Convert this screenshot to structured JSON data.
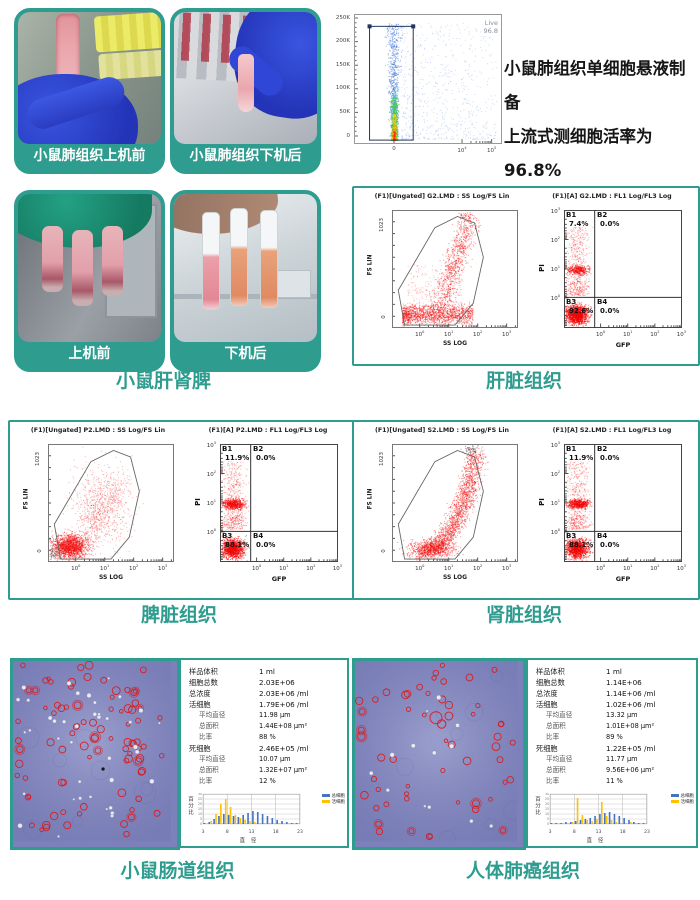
{
  "page": {
    "accent": "#2E9C8F",
    "background": "#ffffff"
  },
  "photos_row1": [
    {
      "label": "小鼠肺组织上机前"
    },
    {
      "label": "小鼠肺组织下机后"
    }
  ],
  "live_plot": {
    "gate_name": "Live",
    "gate_value": "96.8",
    "y_ticks": [
      "250K",
      "200K",
      "150K",
      "100K",
      "50K",
      "0"
    ],
    "x_ticks": [
      {
        "b": "0",
        "e": ""
      },
      {
        "b": "10",
        "e": "4"
      },
      {
        "b": "10",
        "e": "5"
      }
    ]
  },
  "summary": {
    "line1": "小鼠肺组织单细胞悬液制备",
    "line2": "上流式测细胞活率为96.8%"
  },
  "photos_row2": [
    {
      "label": "上机前"
    },
    {
      "label": "下机后"
    }
  ],
  "row2_caption": "小鼠肝肾脾",
  "flow_common": {
    "left_y_label": "FS LIN",
    "left_y_top": "1023",
    "left_y_bottom": "0",
    "left_x_label": "SS LOG",
    "right_y_label": "PI",
    "right_x_label": "GFP",
    "log_ticks": [
      {
        "b": "10",
        "e": "0"
      },
      {
        "b": "10",
        "e": "1"
      },
      {
        "b": "10",
        "e": "2"
      },
      {
        "b": "10",
        "e": "3"
      }
    ],
    "right_y_ticks": [
      {
        "b": "10",
        "e": "3"
      },
      {
        "b": "10",
        "e": "2"
      },
      {
        "b": "10",
        "e": "1"
      },
      {
        "b": "10",
        "e": "0"
      }
    ]
  },
  "flow_panels": [
    {
      "caption": "肝脏组织",
      "left_title": "(F1)[Ungated] G2.LMD : SS Log/FS Lin",
      "right_title": "(F1)[A] G2.LMD : FL1 Log/FL3 Log",
      "b1": "B1",
      "b1_pct": "7.4%",
      "b2": "B2",
      "b2_pct": "0.0%",
      "b3": "B3",
      "b3_pct": "92.6%",
      "b4": "B4",
      "b4_pct": "0.0%"
    },
    {
      "caption": "脾脏组织",
      "left_title": "(F1)[Ungated] P2.LMD : SS Log/FS Lin",
      "right_title": "(F1)[A] P2.LMD : FL1 Log/FL3 Log",
      "b1": "B1",
      "b1_pct": "11.9%",
      "b2": "B2",
      "b2_pct": "0.0%",
      "b3": "B3",
      "b3_pct": "88.1%",
      "b4": "B4",
      "b4_pct": "0.0%"
    },
    {
      "caption": "肾脏组织",
      "left_title": "(F1)[Ungated] S2.LMD : SS Log/FS Lin",
      "right_title": "(F1)[A] S2.LMD : FL1 Log/FL3 Log",
      "b1": "B1",
      "b1_pct": "11.9%",
      "b2": "B2",
      "b2_pct": "0.0%",
      "b3": "B3",
      "b3_pct": "88.1%",
      "b4": "B4",
      "b4_pct": "0.0%"
    }
  ],
  "count_panels": [
    {
      "caption": "小鼠肠道组织",
      "hist": {
        "y_label": "百分比",
        "x_label": "直 径"
      },
      "rows": [
        {
          "label": "样品体积",
          "value": "1 ml"
        },
        {
          "label": "细胞总数",
          "value": "2.03E+06"
        },
        {
          "label": "总浓度",
          "value": "2.03E+06 /ml"
        },
        {
          "label": "活细胞",
          "value": "1.79E+06 /ml"
        },
        {
          "label": "平均直径",
          "value": "11.98 μm",
          "sub": true
        },
        {
          "label": "总面积",
          "value": "1.44E+08 μm²",
          "sub": true
        },
        {
          "label": "比率",
          "value": "88 %",
          "sub": true
        },
        {
          "label": "死细胞",
          "value": "2.46E+05 /ml"
        },
        {
          "label": "平均直径",
          "value": "10.07 μm",
          "sub": true
        },
        {
          "label": "总面积",
          "value": "1.32E+07 μm²",
          "sub": true
        },
        {
          "label": "比率",
          "value": "12 %",
          "sub": true
        }
      ]
    },
    {
      "caption": "人体肺癌组织",
      "hist": {
        "y_label": "百分比",
        "x_label": "直 径"
      },
      "rows": [
        {
          "label": "样品体积",
          "value": "1 ml"
        },
        {
          "label": "细胞总数",
          "value": "1.14E+06"
        },
        {
          "label": "总浓度",
          "value": "1.14E+06 /ml"
        },
        {
          "label": "活细胞",
          "value": "1.02E+06 /ml"
        },
        {
          "label": "平均直径",
          "value": "13.32 μm",
          "sub": true
        },
        {
          "label": "总面积",
          "value": "1.01E+08 μm²",
          "sub": true
        },
        {
          "label": "比率",
          "value": "89 %",
          "sub": true
        },
        {
          "label": "死细胞",
          "value": "1.22E+05 /ml"
        },
        {
          "label": "平均直径",
          "value": "11.77 μm",
          "sub": true
        },
        {
          "label": "总面积",
          "value": "9.56E+06 μm²",
          "sub": true
        },
        {
          "label": "比率",
          "value": "11 %",
          "sub": true
        }
      ]
    }
  ],
  "chart_data": [
    {
      "type": "scatter",
      "id": "lung_viability",
      "gate": {
        "name": "Live",
        "percent": 96.8
      },
      "x_ticks": [
        "0",
        "10^4",
        "10^5"
      ],
      "y_ticks": [
        "0",
        "50K",
        "100K",
        "150K",
        "200K",
        "250K"
      ],
      "note": "density scatter, dense column at x≈0 inside rectangular Live gate"
    },
    {
      "type": "scatter",
      "id": "liver",
      "left_plot": {
        "title": "(F1)[Ungated] G2.LMD : SS Log/FS Lin",
        "xlabel": "SS LOG",
        "ylabel": "FS LIN",
        "y_range": [
          0,
          1023
        ],
        "x_ticks": [
          "10^0",
          "10^1",
          "10^2",
          "10^3"
        ],
        "gate": "polygon"
      },
      "right_plot": {
        "title": "(F1)[A] G2.LMD : FL1 Log/FL3 Log",
        "xlabel": "GFP",
        "ylabel": "PI",
        "x_ticks": [
          "10^0",
          "10^1",
          "10^2",
          "10^3"
        ],
        "y_ticks": [
          "10^0",
          "10^1",
          "10^2",
          "10^3"
        ],
        "quadrants": {
          "B1": 7.4,
          "B2": 0.0,
          "B3": 92.6,
          "B4": 0.0
        }
      }
    },
    {
      "type": "scatter",
      "id": "spleen",
      "left_plot": {
        "title": "(F1)[Ungated] P2.LMD : SS Log/FS Lin",
        "xlabel": "SS LOG",
        "ylabel": "FS LIN",
        "y_range": [
          0,
          1023
        ],
        "x_ticks": [
          "10^0",
          "10^1",
          "10^2",
          "10^3"
        ],
        "gate": "polygon"
      },
      "right_plot": {
        "title": "(F1)[A] P2.LMD : FL1 Log/FL3 Log",
        "xlabel": "GFP",
        "ylabel": "PI",
        "x_ticks": [
          "10^0",
          "10^1",
          "10^2",
          "10^3"
        ],
        "y_ticks": [
          "10^0",
          "10^1",
          "10^2",
          "10^3"
        ],
        "quadrants": {
          "B1": 11.9,
          "B2": 0.0,
          "B3": 88.1,
          "B4": 0.0
        }
      }
    },
    {
      "type": "scatter",
      "id": "kidney",
      "left_plot": {
        "title": "(F1)[Ungated] S2.LMD : SS Log/FS Lin",
        "xlabel": "SS LOG",
        "ylabel": "FS LIN",
        "y_range": [
          0,
          1023
        ],
        "x_ticks": [
          "10^0",
          "10^1",
          "10^2",
          "10^3"
        ],
        "gate": "polygon"
      },
      "right_plot": {
        "title": "(F1)[A] S2.LMD : FL1 Log/FL3 Log",
        "xlabel": "GFP",
        "ylabel": "PI",
        "x_ticks": [
          "10^0",
          "10^1",
          "10^2",
          "10^3"
        ],
        "y_ticks": [
          "10^0",
          "10^1",
          "10^2",
          "10^3"
        ],
        "quadrants": {
          "B1": 11.9,
          "B2": 0.0,
          "B3": 88.1,
          "B4": 0.0
        }
      }
    },
    {
      "type": "bar",
      "id": "intestine_hist",
      "xlabel": "直径",
      "ylabel": "百分比",
      "ylim": [
        0,
        30
      ],
      "x_ticks": [
        3,
        8,
        13,
        18,
        23
      ],
      "categories": [
        4,
        5,
        6,
        7,
        8,
        9,
        10,
        11,
        12,
        13,
        14,
        15,
        16,
        17,
        18,
        19,
        20,
        21,
        22,
        23
      ],
      "series": [
        {
          "name": "总细胞",
          "color": "#4472C4",
          "values": [
            1,
            2,
            5,
            8,
            10,
            9,
            8,
            7,
            9,
            11,
            13,
            12,
            10,
            8,
            6,
            4,
            3,
            2,
            1,
            1
          ]
        },
        {
          "name": "活细胞",
          "color": "#FFC000",
          "values": [
            0,
            3,
            10,
            20,
            25,
            17,
            9,
            6,
            4,
            3,
            2,
            1,
            1,
            1,
            0,
            1,
            0,
            0,
            1,
            0
          ]
        }
      ]
    },
    {
      "type": "bar",
      "id": "lung_cancer_hist",
      "xlabel": "直径",
      "ylabel": "百分比",
      "ylim": [
        0,
        30
      ],
      "x_ticks": [
        3,
        8,
        13,
        18,
        23
      ],
      "categories": [
        4,
        5,
        6,
        7,
        8,
        9,
        10,
        11,
        12,
        13,
        14,
        15,
        16,
        17,
        18,
        19,
        20,
        21,
        22,
        23
      ],
      "series": [
        {
          "name": "总细胞",
          "color": "#4472C4",
          "values": [
            1,
            1,
            1,
            2,
            2,
            3,
            4,
            5,
            6,
            8,
            10,
            11,
            12,
            10,
            8,
            6,
            4,
            2,
            1,
            1
          ]
        },
        {
          "name": "活细胞",
          "color": "#FFC000",
          "values": [
            0,
            0,
            0,
            1,
            2,
            26,
            9,
            4,
            3,
            5,
            22,
            8,
            4,
            2,
            1,
            1,
            2,
            1,
            0,
            0
          ]
        }
      ]
    }
  ]
}
